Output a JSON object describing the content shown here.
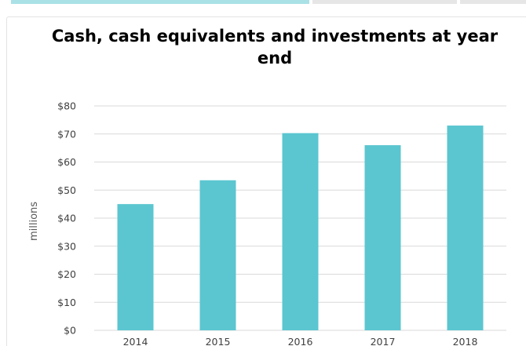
{
  "tabs": {
    "active_color": "#a9e1e6",
    "inactive_color": "#e6e6e6"
  },
  "chart_data": {
    "type": "bar",
    "title": "Cash, cash equivalents and investments at year end",
    "xlabel": "",
    "ylabel": "millions",
    "categories": [
      "2014",
      "2015",
      "2016",
      "2017",
      "2018"
    ],
    "values": [
      45,
      53.5,
      70.3,
      66,
      73
    ],
    "ylim": [
      0,
      80
    ],
    "yticks": [
      0,
      10,
      20,
      30,
      40,
      50,
      60,
      70,
      80
    ],
    "ytick_labels": [
      "$0",
      "$10",
      "$20",
      "$30",
      "$40",
      "$50",
      "$60",
      "$70",
      "$80"
    ],
    "bar_color": "#5bc6d0",
    "grid": true,
    "legend": "none"
  }
}
